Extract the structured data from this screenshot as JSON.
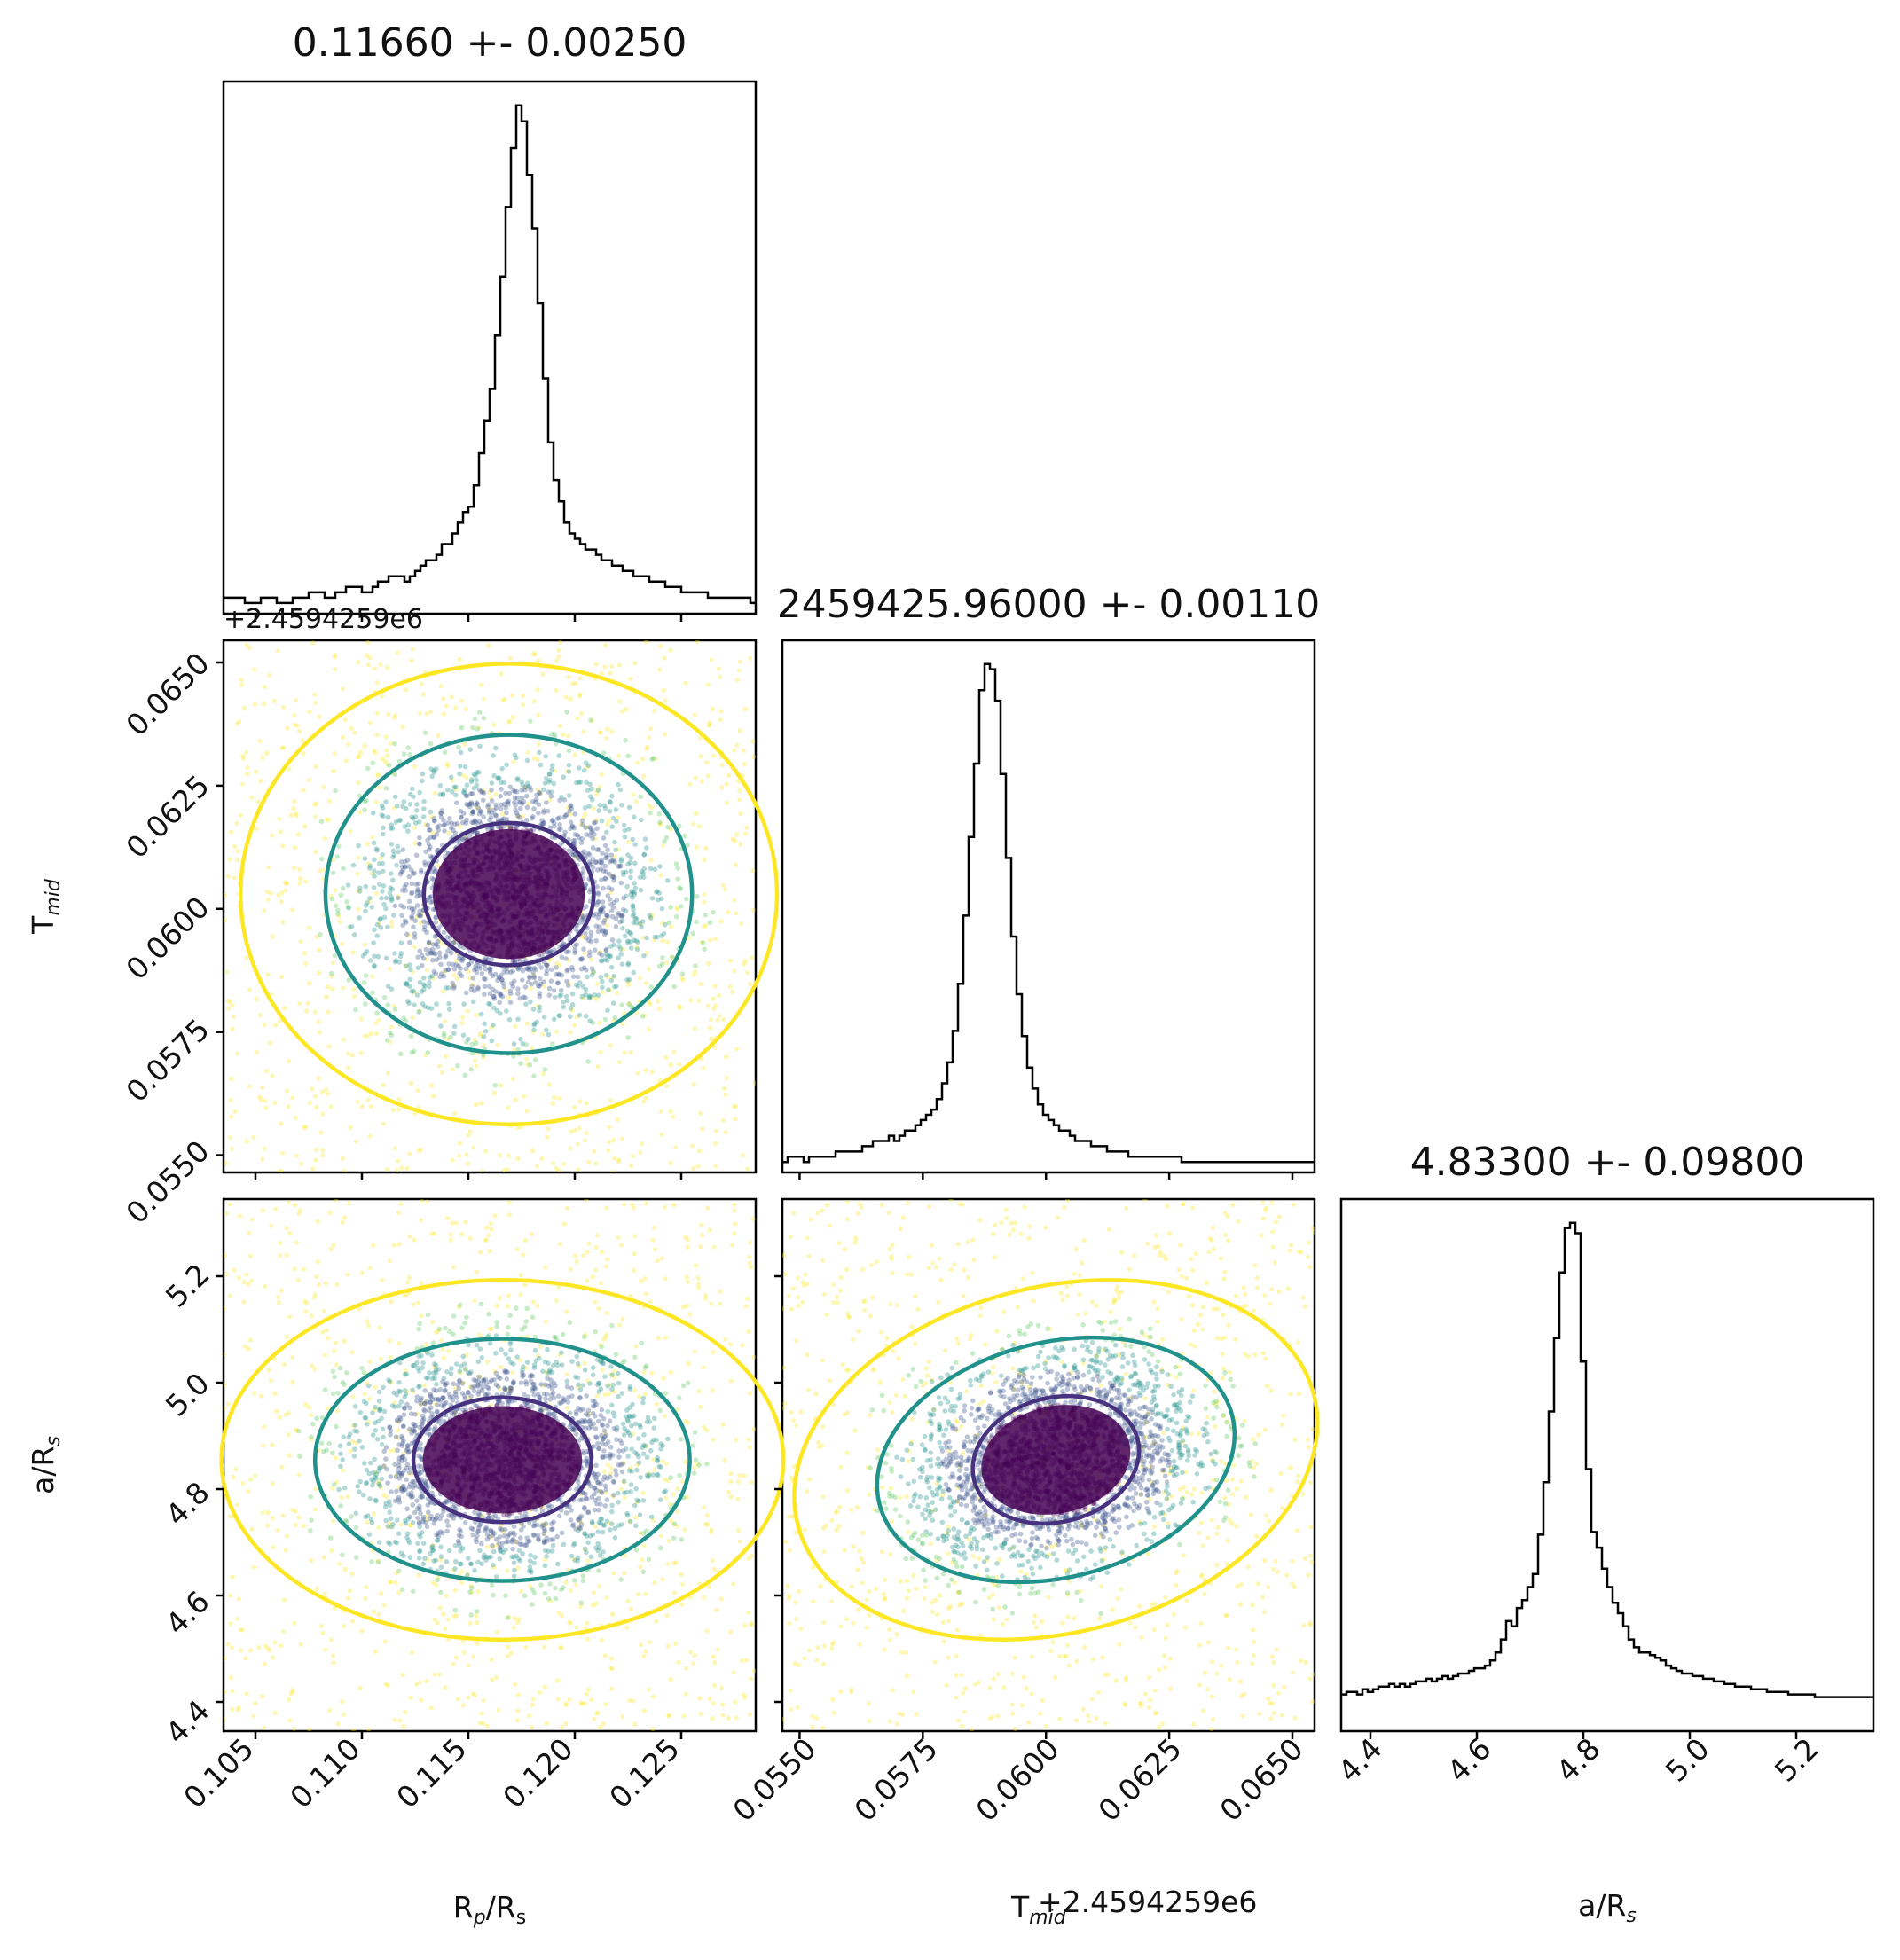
{
  "chart_data": [
    {
      "type": "histogram",
      "panel": "diag-rp",
      "title": "0.11660 +- 0.00250",
      "parameter": "Rp/Rs",
      "xlim": [
        0.1035,
        0.1285
      ],
      "xticks": [
        0.105,
        0.11,
        0.115,
        0.12,
        0.125
      ],
      "bin_edges_start": 0.1035,
      "bin_width": 0.00025,
      "counts": [
        3,
        3,
        3,
        3,
        2,
        2,
        2,
        3,
        3,
        3,
        2,
        2,
        2,
        3,
        3,
        3,
        4,
        4,
        4,
        3,
        3,
        4,
        4,
        5,
        5,
        5,
        4,
        4,
        5,
        6,
        6,
        7,
        7,
        7,
        6,
        7,
        8,
        9,
        10,
        10,
        11,
        13,
        13,
        15,
        17,
        19,
        20,
        24,
        30,
        36,
        42,
        52,
        63,
        76,
        87,
        95,
        92,
        82,
        72,
        58,
        44,
        32,
        25,
        21,
        17,
        15,
        14,
        13,
        12,
        12,
        11,
        10,
        10,
        9,
        9,
        8,
        8,
        7,
        7,
        7,
        6,
        6,
        6,
        5,
        5,
        5,
        4,
        4,
        4,
        4,
        4,
        3,
        3,
        3,
        3,
        3,
        3,
        3,
        3,
        2
      ]
    },
    {
      "type": "scatter",
      "panel": "pair-rp-tmid",
      "parameters": [
        "Rp/Rs",
        "Tmid"
      ],
      "xlim": [
        0.1035,
        0.1285
      ],
      "ylim": [
        0.05465,
        0.06545
      ],
      "center": [
        0.1169,
        0.0603
      ],
      "sigma": [
        0.0021,
        0.00085
      ],
      "correlation": 0.0,
      "contours": [
        {
          "level": "inner",
          "color": "#46327e",
          "scale": [
            1.9,
            1.7
          ]
        },
        {
          "level": "middle",
          "color": "#21918c",
          "scale": [
            4.1,
            3.8
          ]
        },
        {
          "level": "outer",
          "color": "#fde725",
          "scale": [
            6.0,
            5.5
          ]
        }
      ]
    },
    {
      "type": "histogram",
      "panel": "diag-tmid",
      "title": "2459425.96000 +- 0.00110",
      "parameter": "Tmid",
      "xlim": [
        0.05465,
        0.06545
      ],
      "xticks": [
        0.055,
        0.0575,
        0.06,
        0.0625,
        0.065
      ],
      "bin_edges_start": 0.05465,
      "bin_width": 0.000108,
      "counts": [
        2,
        3,
        3,
        3,
        2,
        3,
        3,
        3,
        3,
        3,
        4,
        4,
        4,
        4,
        4,
        5,
        5,
        6,
        6,
        6,
        7,
        6,
        7,
        8,
        8,
        9,
        10,
        11,
        12,
        14,
        17,
        21,
        27,
        36,
        49,
        64,
        78,
        92,
        97,
        96,
        90,
        76,
        60,
        45,
        34,
        26,
        20,
        16,
        13,
        11,
        10,
        9,
        8,
        8,
        7,
        6,
        6,
        6,
        5,
        5,
        5,
        4,
        4,
        4,
        4,
        3,
        3,
        3,
        3,
        3,
        3,
        3,
        3,
        3,
        3,
        2,
        2,
        2,
        2,
        2,
        2,
        2,
        2,
        2,
        2,
        2,
        2,
        2,
        2,
        2,
        2,
        2,
        2,
        2,
        2,
        2,
        2,
        2,
        2,
        2
      ]
    },
    {
      "type": "scatter",
      "panel": "pair-rp-ars",
      "parameters": [
        "Rp/Rs",
        "a/Rs"
      ],
      "xlim": [
        0.1035,
        0.1285
      ],
      "ylim": [
        4.345,
        5.345
      ],
      "center": [
        0.1166,
        4.855
      ],
      "sigma": [
        0.0022,
        0.065
      ],
      "correlation": 0.0,
      "contours": [
        {
          "level": "inner",
          "color": "#46327e",
          "scale": [
            1.9,
            1.8
          ]
        },
        {
          "level": "middle",
          "color": "#21918c",
          "scale": [
            4.0,
            3.5
          ]
        },
        {
          "level": "outer",
          "color": "#fde725",
          "scale": [
            6.0,
            5.2
          ]
        }
      ]
    },
    {
      "type": "scatter",
      "panel": "pair-tmid-ars",
      "parameters": [
        "Tmid",
        "a/Rs"
      ],
      "xlim": [
        0.05465,
        0.06545
      ],
      "ylim": [
        4.345,
        5.345
      ],
      "center": [
        0.0602,
        4.855
      ],
      "sigma": [
        0.0009,
        0.065
      ],
      "correlation": 0.25,
      "contours": [
        {
          "level": "inner",
          "color": "#46327e",
          "scale": [
            1.9,
            1.8
          ]
        },
        {
          "level": "middle",
          "color": "#21918c",
          "scale": [
            4.1,
            3.4
          ]
        },
        {
          "level": "outer",
          "color": "#fde725",
          "scale": [
            6.0,
            5.0
          ]
        }
      ]
    },
    {
      "type": "histogram",
      "panel": "diag-ars",
      "title": "4.83300 +- 0.09800",
      "parameter": "a/Rs",
      "xlim": [
        4.345,
        5.345
      ],
      "xticks": [
        4.4,
        4.6,
        4.8,
        5.0,
        5.2
      ],
      "bin_edges_start": 4.345,
      "bin_width": 0.01,
      "counts": [
        14,
        15,
        15,
        14,
        16,
        15,
        16,
        17,
        17,
        18,
        17,
        18,
        17,
        18,
        19,
        19,
        20,
        19,
        20,
        21,
        20,
        21,
        22,
        22,
        23,
        24,
        24,
        25,
        27,
        30,
        35,
        42,
        40,
        47,
        50,
        55,
        60,
        75,
        95,
        122,
        150,
        175,
        192,
        194,
        190,
        141,
        100,
        76,
        70,
        62,
        55,
        49,
        45,
        40,
        35,
        32,
        30,
        30,
        29,
        28,
        27,
        25,
        24,
        23,
        22,
        22,
        21,
        21,
        20,
        20,
        19,
        19,
        18,
        18,
        17,
        17,
        17,
        16,
        16,
        16,
        15,
        15,
        15,
        15,
        14,
        14,
        14,
        14,
        14,
        13,
        13,
        13,
        13,
        13,
        13,
        13,
        13,
        13,
        13,
        13
      ]
    }
  ],
  "figure": {
    "axis_labels": {
      "rp_x": "R_p/R_s",
      "tmid_x": "T_mid",
      "ars_x": "a/R_s",
      "tmid_y": "T_mid",
      "ars_y": "a/R_s"
    },
    "tick_labels": {
      "rp": [
        "0.105",
        "0.110",
        "0.115",
        "0.120",
        "0.125"
      ],
      "tmid": [
        "0.0550",
        "0.0575",
        "0.0600",
        "0.0625",
        "0.0650"
      ],
      "ars": [
        "4.4",
        "4.6",
        "4.8",
        "5.0",
        "5.2"
      ]
    },
    "offset_text": "+2.4594259e6",
    "colors": {
      "histogram": "#000000",
      "points": [
        "#440154",
        "#3b528b",
        "#21918c",
        "#5ec962",
        "#fde725"
      ],
      "contour_inner": "#46327e",
      "contour_middle": "#21918c",
      "contour_outer": "#fde725"
    }
  }
}
